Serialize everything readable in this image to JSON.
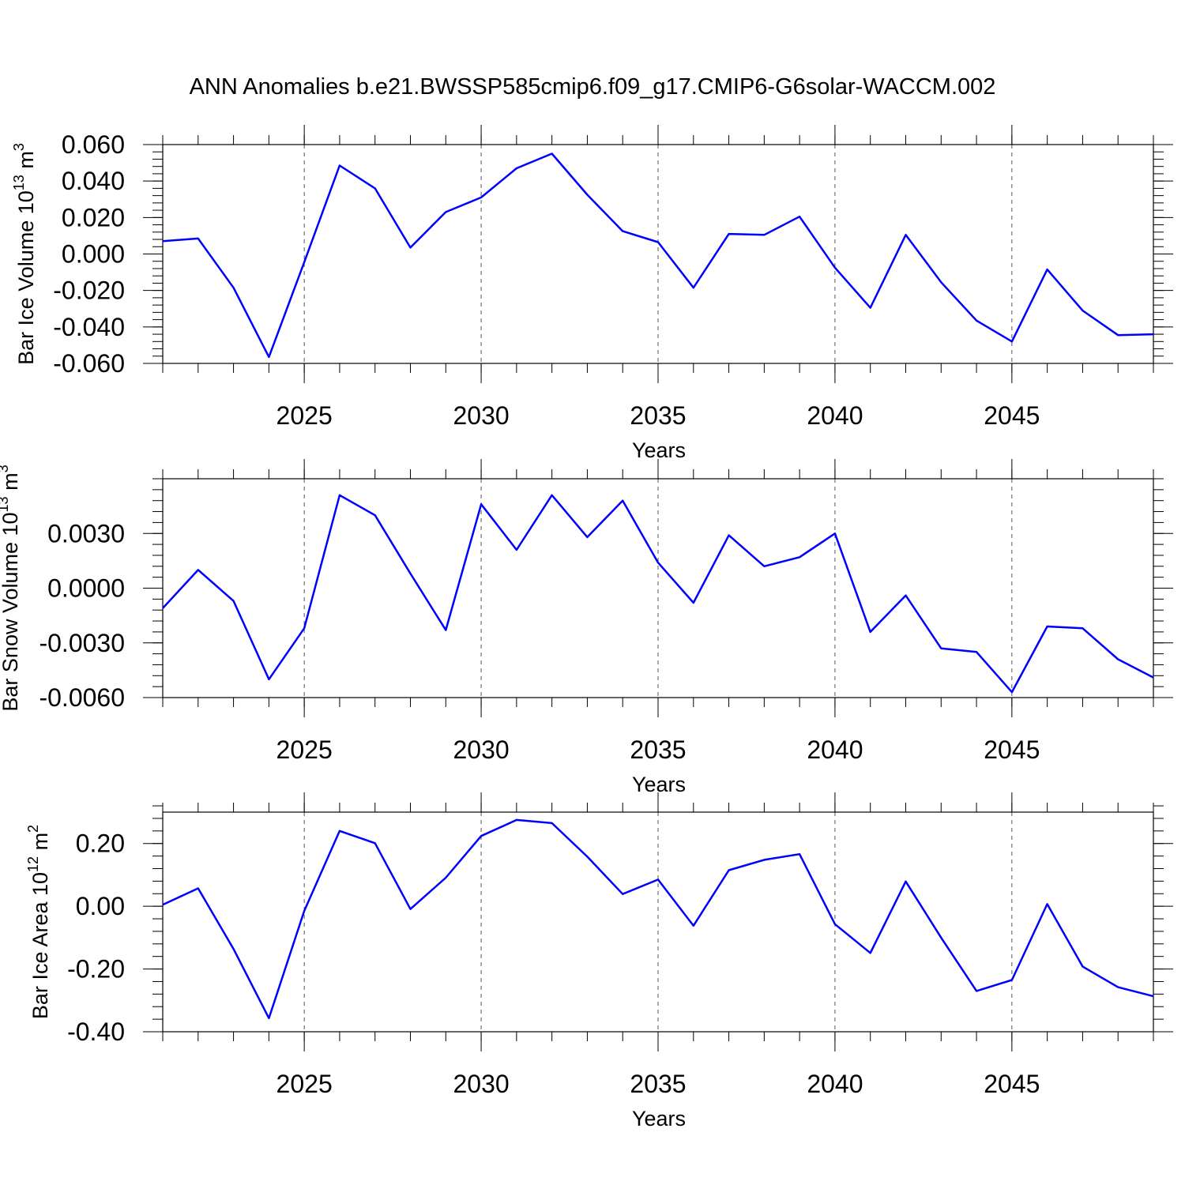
{
  "figure": {
    "title": "ANN Anomalies b.e21.BWSSP585cmip6.f09_g17.CMIP6-G6solar-WACCM.002",
    "line_color": "#0000ff",
    "grid_style": "dashed vertical lines at labeled years"
  },
  "chart_data": [
    {
      "type": "line",
      "title": "",
      "xlabel": "Years",
      "ylabel_prefix": "Bar Ice Volume 10",
      "ylabel_exp": "13",
      "ylabel_unit": " m",
      "ylabel_unit_exp": "3",
      "xlim": [
        2021,
        2049
      ],
      "ylim": [
        -0.06,
        0.06
      ],
      "x_ticks": [
        2025,
        2030,
        2035,
        2040,
        2045
      ],
      "y_ticks": [
        -0.06,
        -0.04,
        -0.02,
        0.0,
        0.02,
        0.04,
        0.06
      ],
      "y_tick_labels": [
        "-0.060",
        "-0.040",
        "-0.020",
        "0.000",
        "0.020",
        "0.040",
        "0.060"
      ],
      "grid": true,
      "x": [
        2021,
        2022,
        2023,
        2024,
        2025,
        2026,
        2027,
        2028,
        2029,
        2030,
        2031,
        2032,
        2033,
        2034,
        2035,
        2036,
        2037,
        2038,
        2039,
        2040,
        2041,
        2042,
        2043,
        2044,
        2045,
        2046,
        2047,
        2048,
        2049
      ],
      "series": [
        {
          "values": [
            0.007,
            0.0085,
            -0.0185,
            -0.0565,
            -0.0045,
            0.0485,
            0.036,
            0.0035,
            0.023,
            0.031,
            0.047,
            0.055,
            0.0325,
            0.0125,
            0.0065,
            -0.0185,
            0.011,
            0.0105,
            0.0205,
            -0.0075,
            -0.0295,
            0.0105,
            -0.0155,
            -0.0365,
            -0.048,
            -0.0085,
            -0.031,
            -0.0445,
            -0.044
          ]
        }
      ]
    },
    {
      "type": "line",
      "title": "",
      "xlabel": "Years",
      "ylabel_prefix": "Bar Snow Volume 10",
      "ylabel_exp": "13",
      "ylabel_unit": " m",
      "ylabel_unit_exp": "3",
      "xlim": [
        2021,
        2049
      ],
      "ylim": [
        -0.006,
        0.006
      ],
      "x_ticks": [
        2025,
        2030,
        2035,
        2040,
        2045
      ],
      "y_ticks": [
        -0.006,
        -0.003,
        0.0,
        0.003
      ],
      "y_tick_labels": [
        "-0.0060",
        "-0.0030",
        "0.0000",
        "0.0030"
      ],
      "grid": true,
      "x": [
        2021,
        2022,
        2023,
        2024,
        2025,
        2026,
        2027,
        2028,
        2029,
        2030,
        2031,
        2032,
        2033,
        2034,
        2035,
        2036,
        2037,
        2038,
        2039,
        2040,
        2041,
        2042,
        2043,
        2044,
        2045,
        2046,
        2047,
        2048,
        2049
      ],
      "series": [
        {
          "values": [
            -0.0011,
            0.001,
            -0.0007,
            -0.005,
            -0.0022,
            0.0051,
            0.004,
            0.0008,
            -0.0023,
            0.0046,
            0.0021,
            0.0051,
            0.0028,
            0.0048,
            0.0014,
            -0.0008,
            0.0029,
            0.0012,
            0.0017,
            0.003,
            -0.0024,
            -0.0004,
            -0.0033,
            -0.0035,
            -0.0057,
            -0.0021,
            -0.0022,
            -0.0039,
            -0.0049
          ]
        }
      ]
    },
    {
      "type": "line",
      "title": "",
      "xlabel": "Years",
      "ylabel_prefix": "Bar Ice Area 10",
      "ylabel_exp": "12",
      "ylabel_unit": " m",
      "ylabel_unit_exp": "2",
      "xlim": [
        2021,
        2049
      ],
      "ylim": [
        -0.4,
        0.3
      ],
      "x_ticks": [
        2025,
        2030,
        2035,
        2040,
        2045
      ],
      "y_ticks": [
        -0.4,
        -0.2,
        0.0,
        0.2
      ],
      "y_tick_labels": [
        "-0.40",
        "-0.20",
        "0.00",
        "0.20"
      ],
      "grid": true,
      "x": [
        2021,
        2022,
        2023,
        2024,
        2025,
        2026,
        2027,
        2028,
        2029,
        2030,
        2031,
        2032,
        2033,
        2034,
        2035,
        2036,
        2037,
        2038,
        2039,
        2040,
        2041,
        2042,
        2043,
        2044,
        2045,
        2046,
        2047,
        2048,
        2049
      ],
      "series": [
        {
          "values": [
            0.005,
            0.057,
            -0.136,
            -0.357,
            -0.015,
            0.24,
            0.201,
            -0.009,
            0.091,
            0.224,
            0.275,
            0.265,
            0.158,
            0.039,
            0.085,
            -0.062,
            0.115,
            0.148,
            0.166,
            -0.057,
            -0.149,
            0.079,
            -0.1,
            -0.27,
            -0.235,
            0.007,
            -0.192,
            -0.258,
            -0.287
          ]
        }
      ]
    }
  ]
}
